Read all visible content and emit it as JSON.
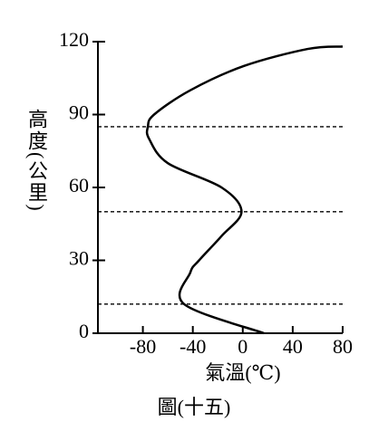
{
  "chart_data": {
    "type": "line",
    "caption": "圖(十五)",
    "xlabel": "氣溫(℃)",
    "ylabel": "高度(公里)",
    "series": [
      {
        "color": "#000000",
        "x": [
          17,
          -47,
          -42,
          -35,
          -17,
          -1,
          -17,
          -60,
          -75,
          -76,
          -71,
          -42,
          1,
          52,
          80
        ],
        "values": [
          0,
          12,
          25,
          30,
          40,
          50,
          60,
          70,
          80,
          85,
          90,
          100,
          110,
          117,
          118
        ]
      }
    ],
    "hlines": [
      85,
      50,
      12
    ],
    "xlim": [
      -116,
      80
    ],
    "xticks": [
      -80,
      -40,
      0,
      40,
      80
    ],
    "ylim": [
      0,
      120
    ],
    "yticks": [
      0,
      30,
      60,
      90,
      120
    ]
  }
}
